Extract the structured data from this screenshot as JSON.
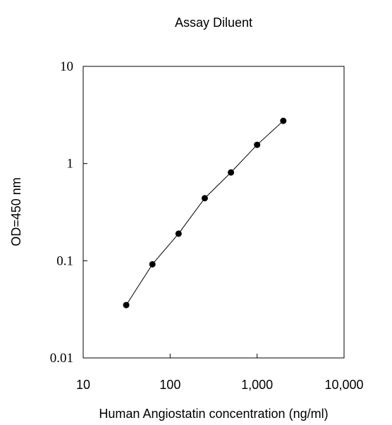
{
  "chart_data": {
    "type": "scatter",
    "title": "Assay Diluent",
    "xlabel": "Human Angiostatin concentration (ng/ml)",
    "ylabel": "OD=450 nm",
    "x_scale": "log",
    "y_scale": "log",
    "xlim": [
      10,
      10000
    ],
    "ylim": [
      0.01,
      10
    ],
    "x_ticks": [
      10,
      100,
      1000,
      10000
    ],
    "x_tick_labels": [
      "10",
      "100",
      "1,000",
      "10,000"
    ],
    "y_ticks": [
      0.01,
      0.1,
      1,
      10
    ],
    "y_tick_labels": [
      "0.01",
      "0.1",
      "1",
      "10"
    ],
    "grid": false,
    "legend": "none",
    "series": [
      {
        "x": [
          31.25,
          62.5,
          125,
          250,
          500,
          1000,
          2000
        ],
        "y": [
          0.035,
          0.092,
          0.19,
          0.44,
          0.81,
          1.56,
          2.75
        ],
        "marker": "circle",
        "connected": true,
        "color": "#000000"
      }
    ]
  }
}
